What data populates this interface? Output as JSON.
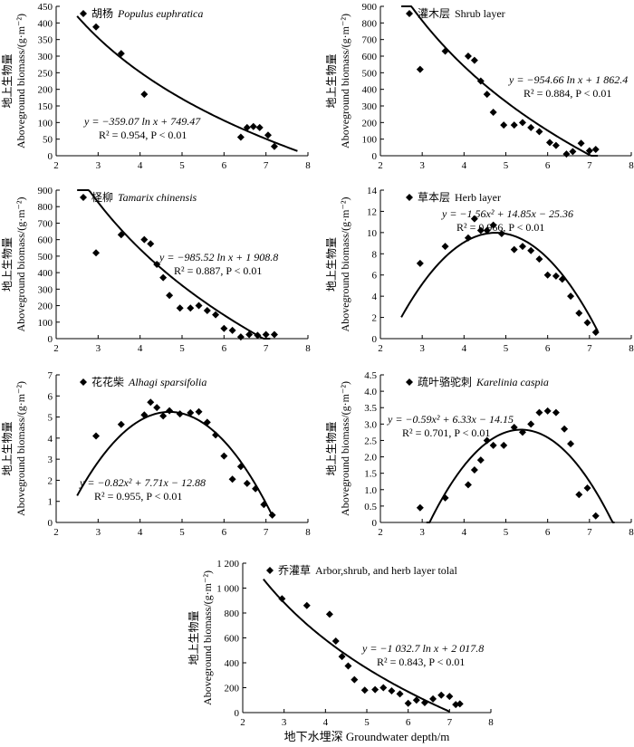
{
  "chart_data": [
    {
      "type": "scatter",
      "title_zh": "胡杨",
      "title_en": "Populus euphratica",
      "title_italic": true,
      "ylabel_zh": "地上生物量",
      "ylabel_en": "Aboveground biomass/(g·m⁻²)",
      "xlim": [
        2,
        8
      ],
      "ylim": [
        0,
        450
      ],
      "xticks": [
        2,
        3,
        4,
        5,
        6,
        7,
        8
      ],
      "yticks": [
        0,
        50,
        100,
        150,
        200,
        250,
        300,
        350,
        400,
        450
      ],
      "ytick_labels": [
        "0",
        "50",
        "100",
        "150",
        "200",
        "250",
        "300",
        "350",
        "400",
        "450"
      ],
      "points": [
        [
          2.95,
          388
        ],
        [
          3.55,
          308
        ],
        [
          4.1,
          185
        ],
        [
          6.4,
          56
        ],
        [
          6.55,
          85
        ],
        [
          6.7,
          88
        ],
        [
          6.85,
          85
        ],
        [
          7.05,
          62
        ],
        [
          7.2,
          28
        ]
      ],
      "fit": {
        "model": "log",
        "a": -359.07,
        "b": 749.47,
        "x_range": [
          2.5,
          7.75
        ]
      },
      "equation": "y = −359.07 ln x + 749.47",
      "r2": "R² = 0.954, P < 0.01"
    },
    {
      "type": "scatter",
      "title_zh": "灌木层",
      "title_en": "Shrub layer",
      "title_italic": false,
      "ylabel_zh": "地上生物量",
      "ylabel_en": "Aboveground biomass/(g·m⁻²)",
      "xlim": [
        2,
        8
      ],
      "ylim": [
        0,
        900
      ],
      "xticks": [
        2,
        3,
        4,
        5,
        6,
        7,
        8
      ],
      "yticks": [
        0,
        100,
        200,
        300,
        400,
        500,
        600,
        700,
        800,
        900
      ],
      "ytick_labels": [
        "0",
        "100",
        "200",
        "300",
        "400",
        "500",
        "600",
        "700",
        "800",
        "900"
      ],
      "points": [
        [
          2.95,
          520
        ],
        [
          3.55,
          630
        ],
        [
          4.1,
          600
        ],
        [
          4.25,
          575
        ],
        [
          4.4,
          450
        ],
        [
          4.55,
          370
        ],
        [
          4.7,
          262
        ],
        [
          4.95,
          185
        ],
        [
          5.2,
          185
        ],
        [
          5.4,
          200
        ],
        [
          5.6,
          170
        ],
        [
          5.8,
          145
        ],
        [
          6.05,
          80
        ],
        [
          6.2,
          62
        ],
        [
          6.45,
          10
        ],
        [
          6.6,
          25
        ],
        [
          6.8,
          75
        ],
        [
          7.0,
          30
        ],
        [
          7.15,
          38
        ]
      ],
      "fit": {
        "model": "log",
        "a": -954.66,
        "b": 1862.4,
        "x_range": [
          2.5,
          7.2
        ]
      },
      "equation": "y = −954.66 ln x + 1 862.4",
      "r2": "R² = 0.884, P < 0.01"
    },
    {
      "type": "scatter",
      "title_zh": "柽柳",
      "title_en": "Tamarix chinensis",
      "title_italic": true,
      "ylabel_zh": "地上生物量",
      "ylabel_en": "Aboveground biomass/(g·m⁻²)",
      "xlim": [
        2,
        8
      ],
      "ylim": [
        0,
        900
      ],
      "xticks": [
        2,
        3,
        4,
        5,
        6,
        7,
        8
      ],
      "yticks": [
        0,
        100,
        200,
        300,
        400,
        500,
        600,
        700,
        800,
        900
      ],
      "ytick_labels": [
        "0",
        "100",
        "200",
        "300",
        "400",
        "500",
        "600",
        "700",
        "800",
        "900"
      ],
      "points": [
        [
          2.95,
          520
        ],
        [
          3.55,
          630
        ],
        [
          4.1,
          600
        ],
        [
          4.25,
          575
        ],
        [
          4.4,
          450
        ],
        [
          4.55,
          370
        ],
        [
          4.7,
          262
        ],
        [
          4.95,
          185
        ],
        [
          5.2,
          185
        ],
        [
          5.4,
          200
        ],
        [
          5.6,
          170
        ],
        [
          5.8,
          145
        ],
        [
          6.0,
          62
        ],
        [
          6.2,
          50
        ],
        [
          6.4,
          10
        ],
        [
          6.6,
          25
        ],
        [
          6.8,
          20
        ],
        [
          7.0,
          25
        ],
        [
          7.2,
          25
        ]
      ],
      "fit": {
        "model": "log",
        "a": -985.52,
        "b": 1908.8,
        "x_range": [
          2.5,
          7.1
        ]
      },
      "equation": "y = −985.52 ln x + 1 908.8",
      "r2": "R² = 0.887, P < 0.01"
    },
    {
      "type": "scatter",
      "title_zh": "草本层",
      "title_en": "Herb layer",
      "title_italic": false,
      "ylabel_zh": "地上生物量",
      "ylabel_en": "Aboveground biomass/(g·m⁻²)",
      "xlim": [
        2,
        8
      ],
      "ylim": [
        0,
        14
      ],
      "xticks": [
        2,
        3,
        4,
        5,
        6,
        7,
        8
      ],
      "yticks": [
        0,
        2,
        4,
        6,
        8,
        10,
        12,
        14
      ],
      "ytick_labels": [
        "0",
        "2",
        "4",
        "6",
        "8",
        "10",
        "12",
        "14"
      ],
      "points": [
        [
          2.95,
          7.1
        ],
        [
          3.55,
          8.7
        ],
        [
          4.1,
          9.5
        ],
        [
          4.25,
          11.3
        ],
        [
          4.4,
          10.2
        ],
        [
          4.55,
          10.2
        ],
        [
          4.7,
          10.7
        ],
        [
          4.9,
          9.9
        ],
        [
          5.2,
          8.4
        ],
        [
          5.4,
          8.7
        ],
        [
          5.6,
          8.3
        ],
        [
          5.8,
          7.5
        ],
        [
          6.0,
          6.0
        ],
        [
          6.2,
          5.9
        ],
        [
          6.35,
          5.6
        ],
        [
          6.55,
          4.0
        ],
        [
          6.75,
          2.4
        ],
        [
          6.95,
          1.5
        ],
        [
          7.15,
          0.6
        ]
      ],
      "fit": {
        "model": "quad",
        "a": -1.56,
        "b": 14.85,
        "c": -25.36,
        "x_range": [
          2.5,
          7.2
        ]
      },
      "equation": "y = −1.56x² + 14.85x − 25.36",
      "r2": "R² = 0.966, P < 0.01"
    },
    {
      "type": "scatter",
      "title_zh": "花花柴",
      "title_en": "Alhagi sparsifolia",
      "title_italic": true,
      "ylabel_zh": "地上生物量",
      "ylabel_en": "Aboveground biomass/(g·m⁻²)",
      "xlim": [
        2,
        8
      ],
      "ylim": [
        0,
        7
      ],
      "xticks": [
        2,
        3,
        4,
        5,
        6,
        7,
        8
      ],
      "yticks": [
        0,
        1,
        2,
        3,
        4,
        5,
        6,
        7
      ],
      "ytick_labels": [
        "0",
        "1",
        "2",
        "3",
        "4",
        "5",
        "6",
        "7"
      ],
      "points": [
        [
          2.95,
          4.1
        ],
        [
          3.55,
          4.65
        ],
        [
          4.1,
          5.1
        ],
        [
          4.25,
          5.7
        ],
        [
          4.4,
          5.45
        ],
        [
          4.55,
          5.05
        ],
        [
          4.7,
          5.3
        ],
        [
          4.95,
          5.15
        ],
        [
          5.2,
          5.2
        ],
        [
          5.4,
          5.25
        ],
        [
          5.6,
          4.75
        ],
        [
          5.8,
          4.15
        ],
        [
          6.0,
          3.15
        ],
        [
          6.2,
          2.05
        ],
        [
          6.4,
          2.65
        ],
        [
          6.55,
          1.85
        ],
        [
          6.75,
          1.6
        ],
        [
          6.95,
          0.85
        ],
        [
          7.15,
          0.35
        ]
      ],
      "fit": {
        "model": "quad",
        "a": -0.82,
        "b": 7.71,
        "c": -12.88,
        "x_range": [
          2.5,
          7.15
        ]
      },
      "equation": "y = −0.82x² + 7.71x − 12.88",
      "r2": "R² = 0.955, P < 0.01"
    },
    {
      "type": "scatter",
      "title_zh": "疏叶骆驼刺",
      "title_en": "Karelinia caspia",
      "title_italic": true,
      "ylabel_zh": "地上生物量",
      "ylabel_en": "Aboveground biomass/(g·m⁻²)",
      "xlim": [
        2,
        8
      ],
      "ylim": [
        0,
        4.5
      ],
      "xticks": [
        2,
        3,
        4,
        5,
        6,
        7,
        8
      ],
      "yticks": [
        0,
        0.5,
        1,
        1.5,
        2,
        2.5,
        3,
        3.5,
        4,
        4.5
      ],
      "ytick_labels": [
        "0",
        "0.5",
        "1.0",
        "1.5",
        "2.0",
        "2.5",
        "3.0",
        "3.5",
        "4.0",
        "4.5"
      ],
      "points": [
        [
          2.95,
          0.45
        ],
        [
          3.55,
          0.75
        ],
        [
          4.1,
          1.15
        ],
        [
          4.25,
          1.6
        ],
        [
          4.4,
          1.9
        ],
        [
          4.55,
          2.5
        ],
        [
          4.7,
          2.35
        ],
        [
          4.95,
          2.35
        ],
        [
          5.2,
          2.9
        ],
        [
          5.4,
          2.75
        ],
        [
          5.6,
          3.0
        ],
        [
          5.8,
          3.35
        ],
        [
          6.0,
          3.4
        ],
        [
          6.2,
          3.35
        ],
        [
          6.4,
          2.85
        ],
        [
          6.55,
          2.4
        ],
        [
          6.75,
          0.85
        ],
        [
          6.95,
          1.05
        ],
        [
          7.15,
          0.2
        ]
      ],
      "fit": {
        "model": "quad",
        "a": -0.59,
        "b": 6.33,
        "c": -14.15,
        "x_range": [
          3.1,
          7.6
        ]
      },
      "equation": "y = −0.59x² + 6.33x − 14.15",
      "r2": "R² = 0.701, P < 0.01"
    },
    {
      "type": "scatter",
      "title_zh": "乔灌草",
      "title_en": "Arbor,shrub, and herb layer tolal",
      "title_italic": false,
      "ylabel_zh": "地上生物量",
      "ylabel_en": "Aboveground biomass/(g·m⁻²)",
      "xlim": [
        2,
        8
      ],
      "ylim": [
        0,
        1200
      ],
      "xticks": [
        2,
        3,
        4,
        5,
        6,
        7,
        8
      ],
      "yticks": [
        0,
        200,
        400,
        600,
        800,
        1000,
        1200
      ],
      "ytick_labels": [
        "0",
        "200",
        "400",
        "600",
        "800",
        "1 000",
        "1 200"
      ],
      "points": [
        [
          2.95,
          915
        ],
        [
          3.55,
          860
        ],
        [
          4.1,
          790
        ],
        [
          4.25,
          575
        ],
        [
          4.4,
          450
        ],
        [
          4.55,
          375
        ],
        [
          4.7,
          265
        ],
        [
          4.95,
          180
        ],
        [
          5.2,
          185
        ],
        [
          5.4,
          200
        ],
        [
          5.6,
          175
        ],
        [
          5.8,
          150
        ],
        [
          6.0,
          75
        ],
        [
          6.2,
          100
        ],
        [
          6.4,
          80
        ],
        [
          6.6,
          110
        ],
        [
          6.8,
          140
        ],
        [
          7.0,
          130
        ],
        [
          7.15,
          65
        ],
        [
          7.25,
          70
        ]
      ],
      "fit": {
        "model": "log",
        "a": -1032.7,
        "b": 2017.8,
        "x_range": [
          2.5,
          7.0
        ]
      },
      "equation": "y = −1 032.7  ln x + 2 017.8",
      "r2": "R² = 0.843, P < 0.01"
    }
  ],
  "xlabel": "地下水埋深 Groundwater depth/m"
}
